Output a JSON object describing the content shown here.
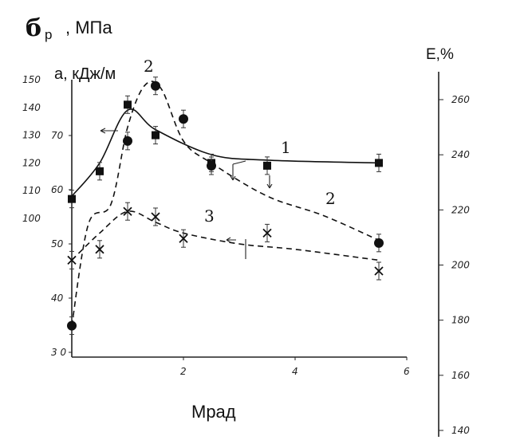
{
  "chart_data": {
    "type": "line",
    "axis_titles": {
      "sigma_symbol": "б",
      "sigma_sub": "р",
      "sigma_unit": ", МПа",
      "a_axis": "a, кДж/м",
      "e_axis": "E,%",
      "x_axis": "Мрад"
    },
    "x_range": [
      0,
      6
    ],
    "x_ticks": [
      "2",
      "4",
      "6"
    ],
    "left_axis_sigma": {
      "range": [
        95,
        155
      ],
      "ticks": [
        "150",
        "140",
        "130",
        "120",
        "110",
        "100"
      ]
    },
    "left_axis_a": {
      "range": [
        30,
        80
      ],
      "ticks": [
        "70",
        "60",
        "50",
        "40",
        "3 0"
      ]
    },
    "right_axis_e": {
      "range": [
        140,
        270
      ],
      "ticks": [
        "260",
        "240",
        "220",
        "200",
        "180",
        "160",
        "140"
      ]
    },
    "series": [
      {
        "name": "1",
        "axis": "left_sigma",
        "style": "solid",
        "marker": "square",
        "points": [
          [
            0,
            107
          ],
          [
            0.5,
            117
          ],
          [
            1.0,
            141
          ],
          [
            1.5,
            130
          ],
          [
            2.5,
            120
          ],
          [
            3.5,
            119
          ],
          [
            5.5,
            120
          ]
        ],
        "curve": [
          [
            0,
            108
          ],
          [
            0.5,
            120
          ],
          [
            1.0,
            139
          ],
          [
            1.5,
            132
          ],
          [
            2.5,
            123
          ],
          [
            3.5,
            121
          ],
          [
            5.5,
            120
          ]
        ]
      },
      {
        "name": "2",
        "axis": "right_e",
        "style": "dashed",
        "marker": "circle",
        "points": [
          [
            0,
            178
          ],
          [
            1.0,
            245
          ],
          [
            1.5,
            265
          ],
          [
            2.0,
            253
          ],
          [
            2.5,
            236
          ],
          [
            5.5,
            208
          ]
        ],
        "curve": [
          [
            0,
            178
          ],
          [
            0.3,
            215
          ],
          [
            0.7,
            222
          ],
          [
            1.0,
            250
          ],
          [
            1.3,
            265
          ],
          [
            1.6,
            264
          ],
          [
            2.0,
            245
          ],
          [
            2.5,
            237
          ],
          [
            3.5,
            225
          ],
          [
            4.5,
            218
          ],
          [
            5.5,
            209
          ]
        ]
      },
      {
        "name": "3",
        "axis": "left_a",
        "style": "dashed",
        "marker": "cross",
        "points": [
          [
            0,
            47
          ],
          [
            0.5,
            49
          ],
          [
            1.0,
            56
          ],
          [
            1.5,
            55
          ],
          [
            2.0,
            51
          ],
          [
            3.5,
            52
          ],
          [
            5.5,
            45
          ]
        ],
        "curve": [
          [
            0,
            47
          ],
          [
            0.5,
            52
          ],
          [
            1.0,
            56
          ],
          [
            1.5,
            54
          ],
          [
            2.0,
            52
          ],
          [
            3.0,
            50
          ],
          [
            4.0,
            49
          ],
          [
            5.5,
            47
          ]
        ]
      }
    ],
    "curve_labels": [
      "1",
      "2",
      "2",
      "3"
    ]
  }
}
